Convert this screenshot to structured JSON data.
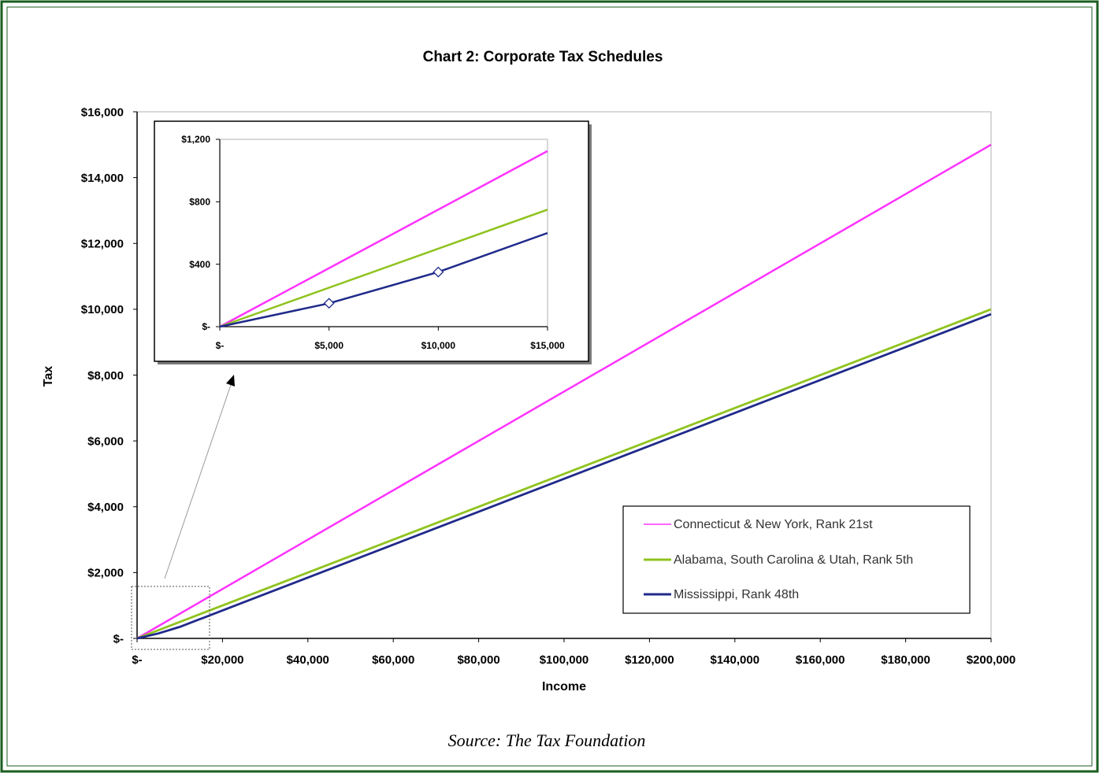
{
  "chart_data": [
    {
      "type": "line",
      "title": "Chart 2: Corporate Tax Schedules",
      "xlabel": "Income",
      "ylabel": "Tax",
      "xlim": [
        0,
        200000
      ],
      "ylim": [
        0,
        16000
      ],
      "x_ticks": [
        "$-",
        "$20,000",
        "$40,000",
        "$60,000",
        "$80,000",
        "$100,000",
        "$120,000",
        "$140,000",
        "$160,000",
        "$180,000",
        "$200,000"
      ],
      "y_ticks": [
        "$-",
        "$2,000",
        "$4,000",
        "$6,000",
        "$8,000",
        "$10,000",
        "$12,000",
        "$14,000",
        "$16,000"
      ],
      "grid": false,
      "legend_position": "bottom-right",
      "series": [
        {
          "name": "Connecticut & New York, Rank 21st",
          "color": "#ff33ff",
          "x": [
            0,
            200000
          ],
          "y": [
            0,
            15000
          ]
        },
        {
          "name": "Alabama, South Carolina & Utah, Rank 5th",
          "color": "#8fc31f",
          "x": [
            0,
            200000
          ],
          "y": [
            0,
            10000
          ]
        },
        {
          "name": "Mississippi, Rank 48th",
          "color": "#1f2a8a",
          "x": [
            0,
            5000,
            10000,
            200000
          ],
          "y": [
            0,
            150,
            350,
            9850
          ]
        }
      ]
    },
    {
      "type": "line",
      "title": "",
      "xlabel": "",
      "ylabel": "",
      "xlim": [
        0,
        15000
      ],
      "ylim": [
        0,
        1200
      ],
      "x_ticks": [
        "$-",
        "$5,000",
        "$10,000",
        "$15,000"
      ],
      "y_ticks": [
        "$-",
        "$400",
        "$800",
        "$1,200"
      ],
      "grid": false,
      "series": [
        {
          "color": "#ff33ff",
          "x": [
            0,
            15000
          ],
          "y": [
            0,
            1125
          ]
        },
        {
          "color": "#8fc31f",
          "x": [
            0,
            15000
          ],
          "y": [
            0,
            750
          ]
        },
        {
          "color": "#1f2a8a",
          "x": [
            0,
            5000,
            10000,
            15000
          ],
          "y": [
            0,
            150,
            350,
            600
          ],
          "markers": [
            5000,
            10000
          ]
        }
      ]
    }
  ],
  "source": "Source: The Tax Foundation"
}
